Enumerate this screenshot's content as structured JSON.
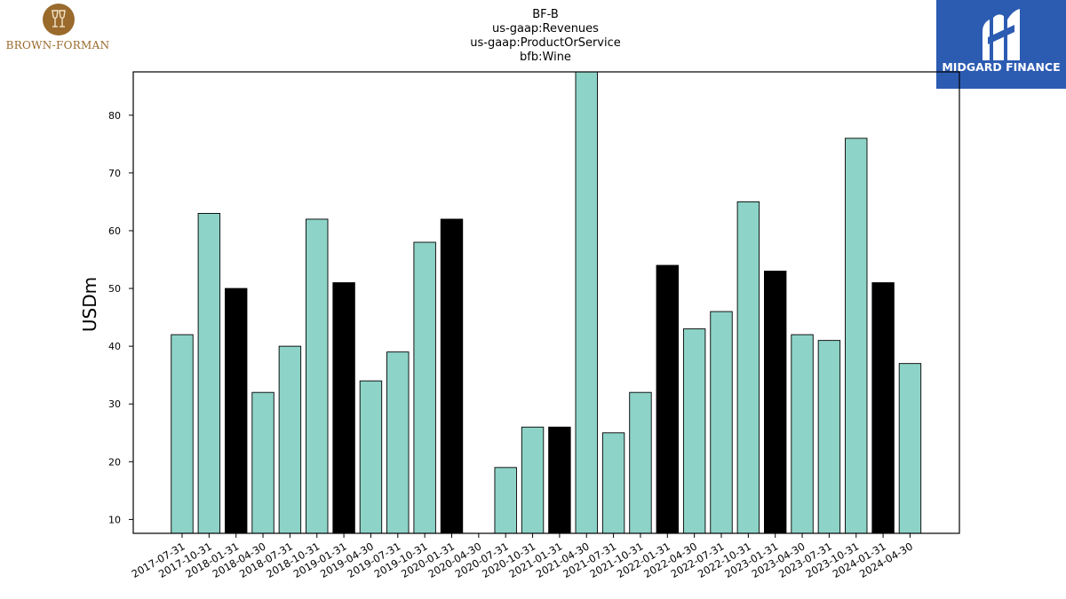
{
  "header": {
    "title_lines": [
      "BF-B",
      "us-gaap:Revenues",
      "us-gaap:ProductOrService",
      "bfb:Wine"
    ]
  },
  "logos": {
    "left": {
      "text": "BROWN-FORMAN",
      "icon": "wine-glasses-seal-icon",
      "color": "#9a6a2c"
    },
    "right": {
      "text": "MIDGARD FINANCE",
      "icon": "midgard-m-icon",
      "color": "#2c5bb2"
    }
  },
  "chart_data": {
    "type": "bar",
    "ylabel": "USDm",
    "xlabel": "",
    "ylim": [
      7.6,
      87.5
    ],
    "yticks": [
      10,
      20,
      30,
      40,
      50,
      60,
      70,
      80
    ],
    "grid": false,
    "categories": [
      "2017-07-31",
      "2017-10-31",
      "2018-01-31",
      "2018-04-30",
      "2018-07-31",
      "2018-10-31",
      "2019-01-31",
      "2019-04-30",
      "2019-07-31",
      "2019-10-31",
      "2020-01-31",
      "2020-04-30",
      "2020-07-31",
      "2020-10-31",
      "2021-01-31",
      "2021-04-30",
      "2021-07-31",
      "2021-10-31",
      "2022-01-31",
      "2022-04-30",
      "2022-07-31",
      "2022-10-31",
      "2023-01-31",
      "2023-04-30",
      "2023-07-31",
      "2023-10-31",
      "2024-01-31",
      "2024-04-30"
    ],
    "values": [
      42,
      63,
      50,
      32,
      40,
      62,
      51,
      34,
      39,
      58,
      62,
      null,
      19,
      26,
      26,
      88,
      25,
      32,
      54,
      43,
      46,
      65,
      53,
      42,
      41,
      76,
      51,
      37
    ],
    "bar_colors": [
      "#8dd3c7",
      "#8dd3c7",
      "#000000",
      "#8dd3c7",
      "#8dd3c7",
      "#8dd3c7",
      "#000000",
      "#8dd3c7",
      "#8dd3c7",
      "#8dd3c7",
      "#000000",
      "#8dd3c7",
      "#8dd3c7",
      "#8dd3c7",
      "#000000",
      "#8dd3c7",
      "#8dd3c7",
      "#8dd3c7",
      "#000000",
      "#8dd3c7",
      "#8dd3c7",
      "#8dd3c7",
      "#000000",
      "#8dd3c7",
      "#8dd3c7",
      "#8dd3c7",
      "#000000",
      "#8dd3c7"
    ]
  }
}
